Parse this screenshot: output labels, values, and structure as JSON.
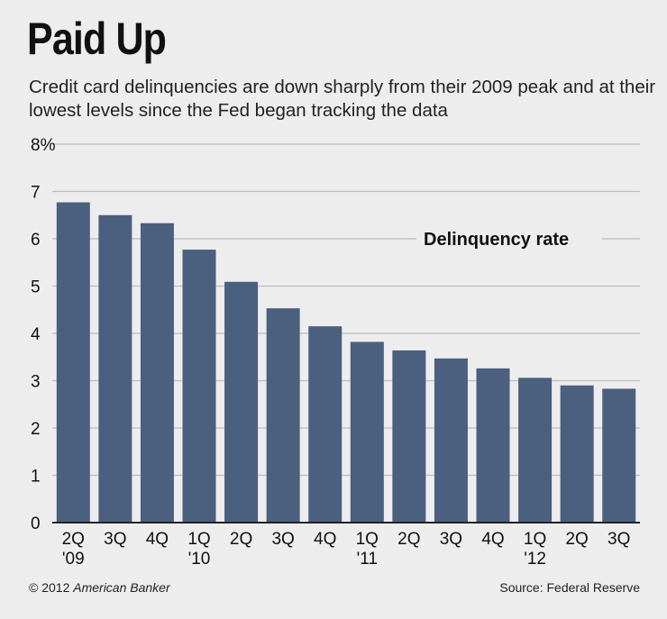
{
  "header": {
    "title": "Paid Up",
    "subtitle": "Credit card delinquencies are down sharply from their 2009 peak and at their lowest levels since the Fed began tracking the data"
  },
  "footer": {
    "copyright": "© 2012",
    "publisher": "American Banker",
    "source": "Source: Federal Reserve"
  },
  "colors": {
    "bar": "#4b5f7f",
    "grid": "#bdbdbd",
    "background": "#ededed"
  },
  "chart_data": {
    "type": "bar",
    "title": "Paid Up",
    "subtitle": "Credit card delinquencies are down sharply from their 2009 peak and at their lowest levels since the Fed began tracking the data",
    "categories": [
      "2Q '09",
      "3Q",
      "4Q",
      "1Q '10",
      "2Q",
      "3Q",
      "4Q",
      "1Q '11",
      "2Q",
      "3Q",
      "4Q",
      "1Q '12",
      "2Q",
      "3Q"
    ],
    "category_labels": [
      [
        "2Q",
        "'09"
      ],
      [
        "3Q"
      ],
      [
        "4Q"
      ],
      [
        "1Q",
        "'10"
      ],
      [
        "2Q"
      ],
      [
        "3Q"
      ],
      [
        "4Q"
      ],
      [
        "1Q",
        "'11"
      ],
      [
        "2Q"
      ],
      [
        "3Q"
      ],
      [
        "4Q"
      ],
      [
        "1Q",
        "'12"
      ],
      [
        "2Q"
      ],
      [
        "3Q"
      ]
    ],
    "series": [
      {
        "name": "Delinquency rate",
        "values": [
          6.77,
          6.5,
          6.33,
          5.77,
          5.09,
          4.53,
          4.15,
          3.82,
          3.64,
          3.47,
          3.26,
          3.06,
          2.9,
          2.83
        ]
      }
    ],
    "ylim": [
      0,
      8
    ],
    "yticks": [
      "0",
      "1",
      "2",
      "3",
      "4",
      "5",
      "6",
      "7",
      "8%"
    ],
    "grid": true,
    "legend_position": "top-right"
  }
}
